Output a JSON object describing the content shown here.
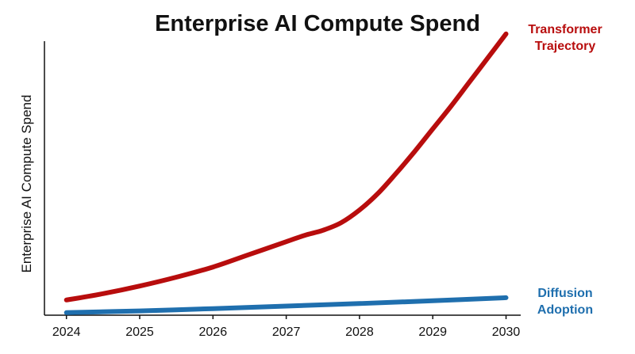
{
  "chart_data": {
    "type": "line",
    "title": "Enterprise AI Compute Spend",
    "xlabel": "",
    "ylabel": "Enterprise AI Compute Spend",
    "x": [
      2024,
      2025,
      2026,
      2027,
      2028,
      2029,
      2030
    ],
    "categories": [
      "2024",
      "2025",
      "2026",
      "2027",
      "2028",
      "2029",
      "2030"
    ],
    "xlim": [
      2023.7,
      2030.2
    ],
    "ylim": [
      0,
      100
    ],
    "y_tick_labels_shown": false,
    "grid": false,
    "legend": "inline labels at right end of lines",
    "series": [
      {
        "name": "Transformer Trajectory",
        "label_lines": [
          "Transformer",
          "Trajectory"
        ],
        "color": "#b80d0d",
        "x": [
          2024,
          2024.5,
          2025,
          2025.5,
          2026,
          2026.5,
          2027,
          2027.25,
          2027.5,
          2027.75,
          2028,
          2028.25,
          2028.5,
          2028.75,
          2029,
          2029.25,
          2029.5,
          2029.75,
          2030
        ],
        "values": [
          6,
          8.5,
          11.5,
          15,
          19,
          24,
          29,
          31.5,
          33.5,
          36.5,
          41.5,
          48,
          56,
          64.5,
          73.5,
          82.5,
          92,
          101.5,
          111
        ]
      },
      {
        "name": "Diffusion Adoption",
        "label_lines": [
          "Diffusion",
          "Adoption"
        ],
        "color": "#1f6fae",
        "x": [
          2024,
          2025,
          2026,
          2027,
          2028,
          2029,
          2030
        ],
        "values": [
          1,
          1.7,
          2.6,
          3.6,
          4.6,
          5.7,
          6.9
        ]
      }
    ]
  }
}
